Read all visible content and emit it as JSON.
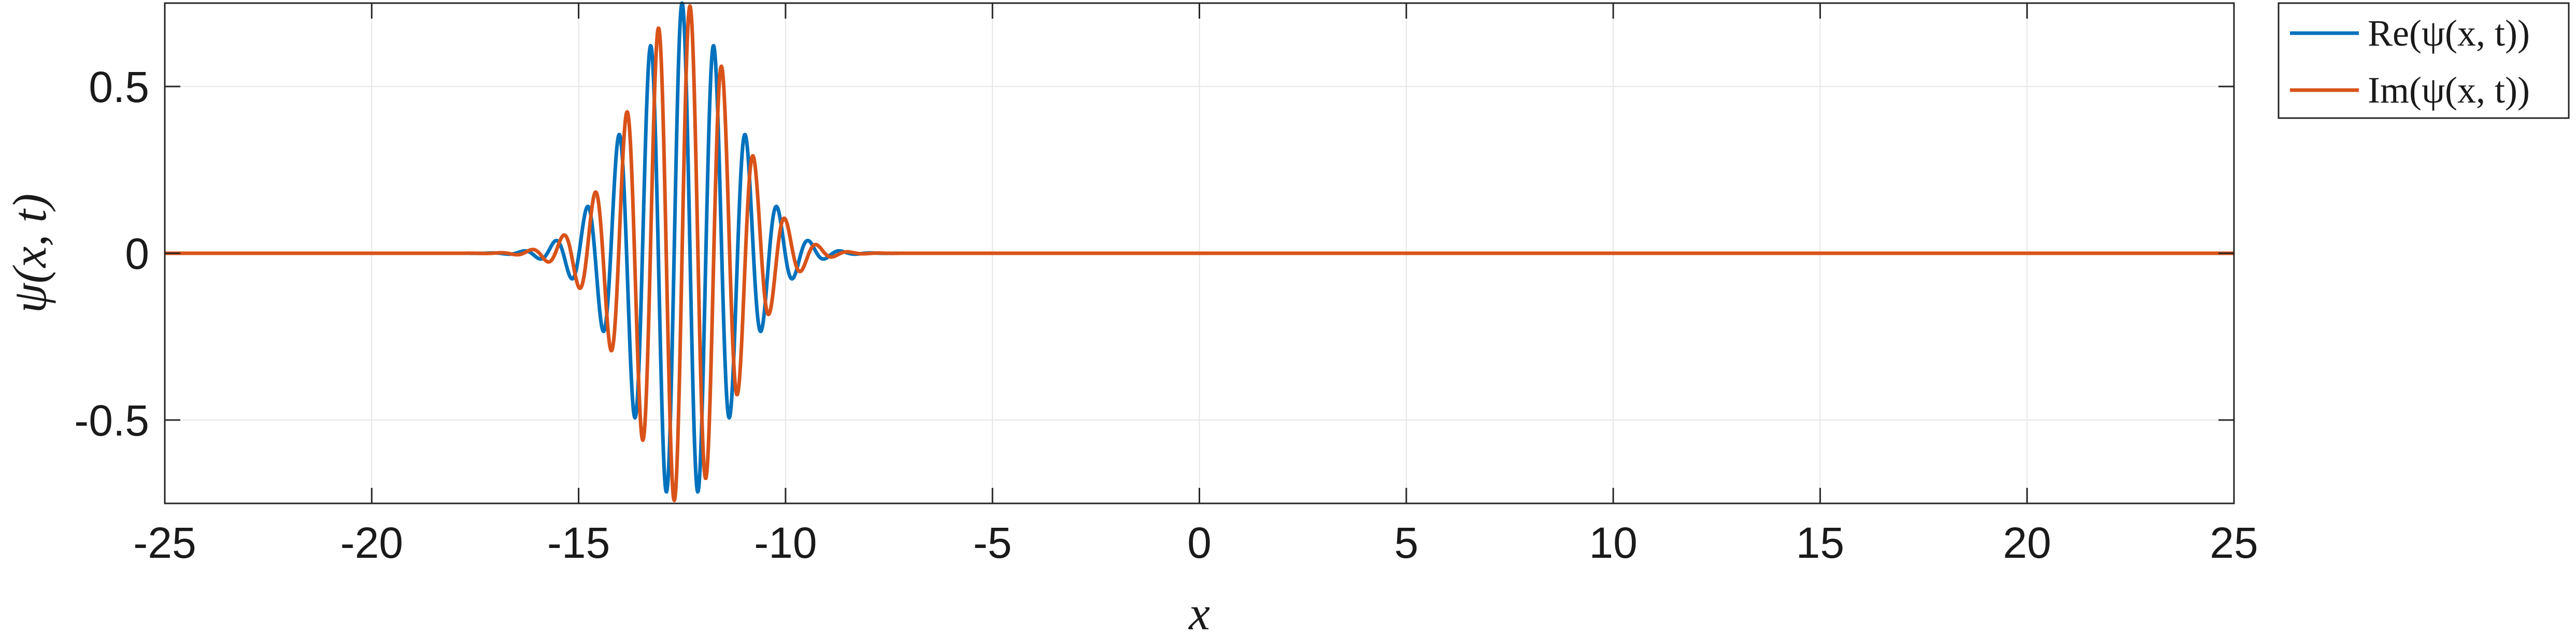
{
  "chart_data": {
    "type": "line",
    "title": "",
    "xlabel": "x",
    "ylabel": "ψ(x, t)",
    "xlim": [
      -25,
      25
    ],
    "ylim": [
      -0.75,
      0.75
    ],
    "x_ticks": [
      -25,
      -20,
      -15,
      -10,
      -5,
      0,
      5,
      10,
      15,
      20,
      25
    ],
    "x_tick_labels": [
      "-25",
      "-20",
      "-15",
      "-10",
      "-5",
      "0",
      "5",
      "10",
      "15",
      "20",
      "25"
    ],
    "y_ticks": [
      -0.5,
      0,
      0.5
    ],
    "y_tick_labels": [
      "-0.5",
      "0",
      "0.5"
    ],
    "grid": true,
    "legend_position": "outside-top-right",
    "colors": {
      "re": "#0072BD",
      "im": "#D95319",
      "axis": "#262626",
      "grid": "#e6e6e6"
    },
    "wave_packet": {
      "center": -12.5,
      "amplitude": 0.75,
      "gaussian_sigma": 1.25,
      "wavenumber": 8.2,
      "phase": 0.0,
      "x_min": -25,
      "x_max": 25,
      "samples": 4000
    },
    "series": [
      {
        "name": "Re(ψ(x, t))",
        "component": "re"
      },
      {
        "name": "Im(ψ(x, t))",
        "component": "im"
      }
    ]
  }
}
